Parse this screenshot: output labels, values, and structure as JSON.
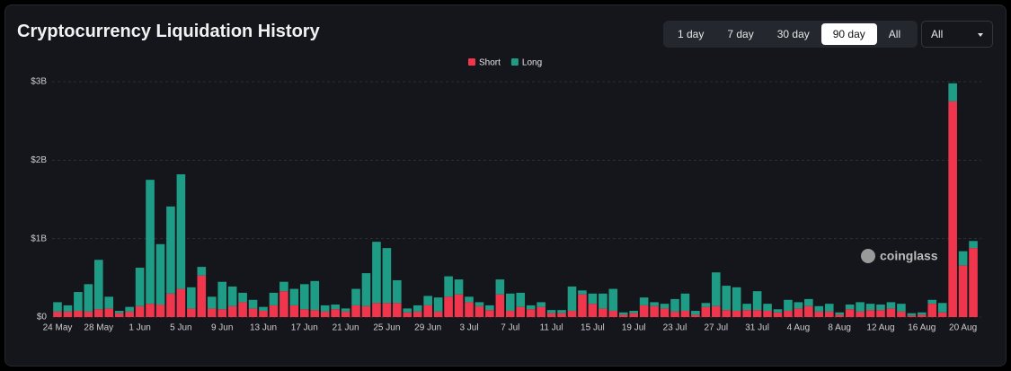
{
  "ui": {
    "title": "Cryptocurrency Liquidation History",
    "range_buttons": [
      "1 day",
      "7 day",
      "30 day",
      "90 day",
      "All"
    ],
    "active_button": 3,
    "dropdown": "All",
    "watermark": "coinglass"
  },
  "chart_data": {
    "type": "bar",
    "stacked": true,
    "categories": [
      "24 May",
      null,
      null,
      null,
      "28 May",
      null,
      null,
      null,
      "1 Jun",
      null,
      null,
      null,
      "5 Jun",
      null,
      null,
      null,
      "9 Jun",
      null,
      null,
      null,
      "13 Jun",
      null,
      null,
      null,
      "17 Jun",
      null,
      null,
      null,
      "21 Jun",
      null,
      null,
      null,
      "25 Jun",
      null,
      null,
      null,
      "29 Jun",
      null,
      null,
      null,
      "3 Jul",
      null,
      null,
      null,
      "7 Jul",
      null,
      null,
      null,
      "11 Jul",
      null,
      null,
      null,
      "15 Jul",
      null,
      null,
      null,
      "19 Jul",
      null,
      null,
      null,
      "23 Jul",
      null,
      null,
      null,
      "27 Jul",
      null,
      null,
      null,
      "31 Jul",
      null,
      null,
      null,
      "4 Aug",
      null,
      null,
      null,
      "8 Aug",
      null,
      null,
      null,
      "12 Aug",
      null,
      null,
      null,
      "16 Aug",
      null,
      null,
      null,
      "20 Aug",
      null
    ],
    "series": [
      {
        "name": "Short",
        "color": "#f0364c",
        "values": [
          0.07,
          0.07,
          0.08,
          0.07,
          0.1,
          0.11,
          0.05,
          0.07,
          0.14,
          0.17,
          0.16,
          0.3,
          0.36,
          0.11,
          0.53,
          0.11,
          0.1,
          0.14,
          0.19,
          0.11,
          0.08,
          0.15,
          0.33,
          0.15,
          0.1,
          0.09,
          0.07,
          0.1,
          0.07,
          0.15,
          0.14,
          0.18,
          0.18,
          0.18,
          0.06,
          0.07,
          0.15,
          0.07,
          0.26,
          0.29,
          0.19,
          0.14,
          0.09,
          0.29,
          0.08,
          0.13,
          0.1,
          0.13,
          0.05,
          0.05,
          0.08,
          0.29,
          0.17,
          0.11,
          0.08,
          0.03,
          0.05,
          0.15,
          0.14,
          0.11,
          0.07,
          0.08,
          0.03,
          0.13,
          0.14,
          0.09,
          0.08,
          0.09,
          0.09,
          0.08,
          0.06,
          0.08,
          0.11,
          0.14,
          0.07,
          0.07,
          0.03,
          0.1,
          0.07,
          0.09,
          0.09,
          0.11,
          0.07,
          0.02,
          0.03,
          0.17,
          0.06,
          2.75,
          0.66,
          0.88
        ]
      },
      {
        "name": "Long",
        "color": "#1e9c85",
        "values": [
          0.12,
          0.08,
          0.24,
          0.35,
          0.63,
          0.15,
          0.03,
          0.06,
          0.49,
          1.58,
          0.77,
          1.11,
          1.46,
          0.27,
          0.11,
          0.15,
          0.35,
          0.25,
          0.12,
          0.11,
          0.05,
          0.16,
          0.12,
          0.21,
          0.32,
          0.37,
          0.08,
          0.06,
          0.04,
          0.21,
          0.42,
          0.78,
          0.7,
          0.29,
          0.05,
          0.08,
          0.12,
          0.18,
          0.26,
          0.19,
          0.07,
          0.05,
          0.06,
          0.19,
          0.22,
          0.18,
          0.05,
          0.06,
          0.04,
          0.04,
          0.31,
          0.05,
          0.13,
          0.19,
          0.28,
          0.03,
          0.03,
          0.1,
          0.05,
          0.06,
          0.16,
          0.22,
          0.05,
          0.05,
          0.43,
          0.31,
          0.3,
          0.08,
          0.24,
          0.09,
          0.04,
          0.14,
          0.08,
          0.09,
          0.07,
          0.1,
          0.03,
          0.06,
          0.12,
          0.08,
          0.07,
          0.08,
          0.1,
          0.03,
          0.03,
          0.05,
          0.12,
          0.23,
          0.18,
          0.09
        ]
      }
    ],
    "ylim": [
      0,
      3
    ],
    "yticks": [
      {
        "value": 0,
        "label": "$0"
      },
      {
        "value": 1,
        "label": "$1B"
      },
      {
        "value": 2,
        "label": "$2B"
      },
      {
        "value": 3,
        "label": "$3B"
      }
    ],
    "grid": true,
    "legend": "top"
  }
}
